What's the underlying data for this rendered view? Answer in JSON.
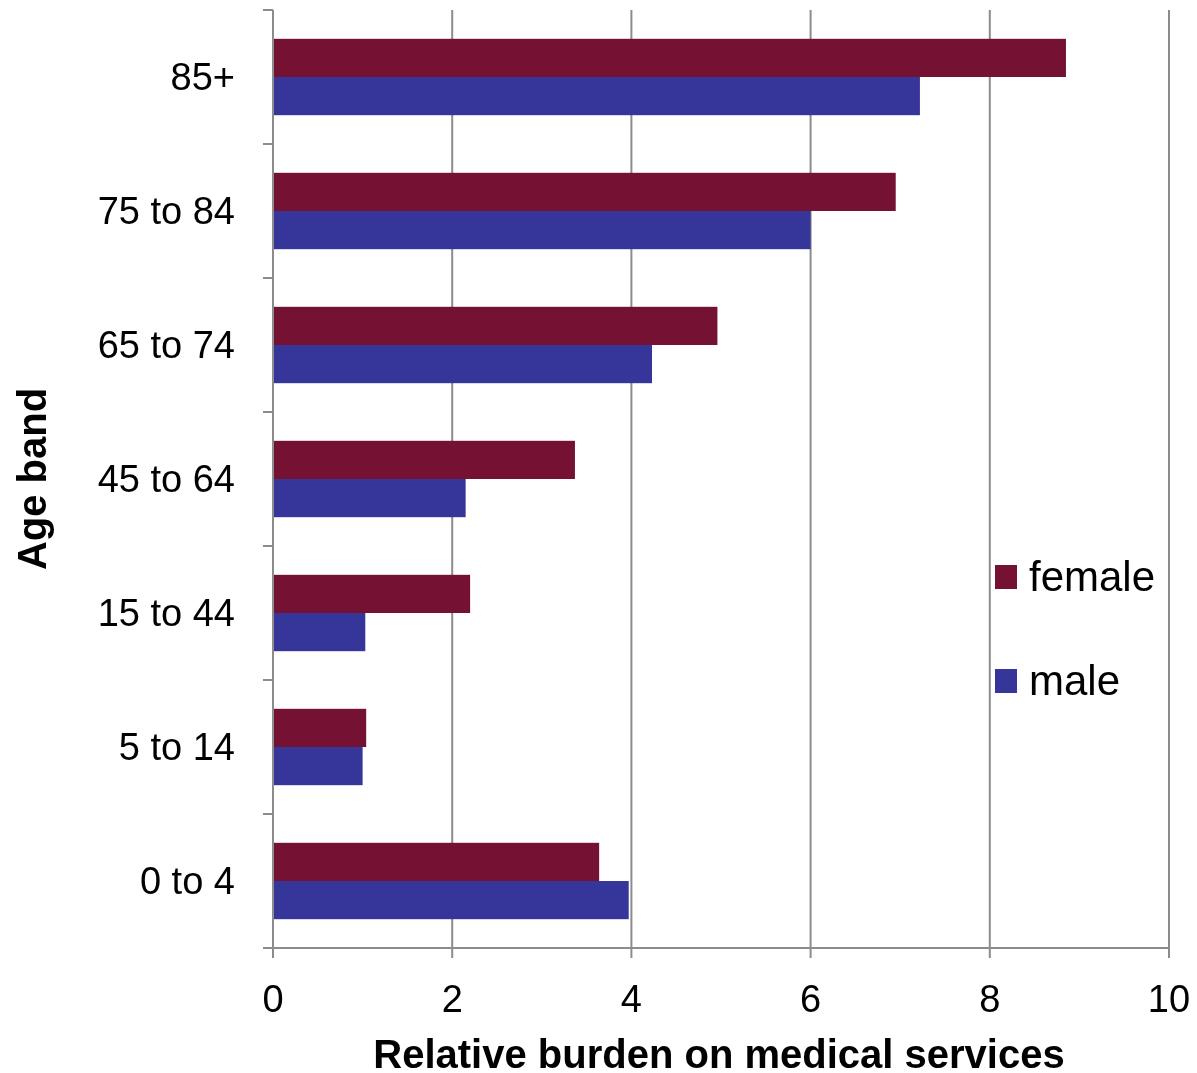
{
  "chart_data": {
    "type": "bar",
    "orientation": "horizontal",
    "xlabel": "Relative burden on medical services",
    "ylabel": "Age band",
    "categories": [
      "85+",
      "75 to 84",
      "65 to 74",
      "45 to 64",
      "15 to 44",
      "5 to 14",
      "0 to 4"
    ],
    "series": [
      {
        "name": "female",
        "color": "#751234",
        "values": [
          8.85,
          6.95,
          4.96,
          3.37,
          2.2,
          1.04,
          3.64
        ]
      },
      {
        "name": "male",
        "color": "#35359a",
        "values": [
          7.22,
          6.0,
          4.23,
          2.15,
          1.03,
          1.0,
          3.97
        ]
      }
    ],
    "xlim": [
      0,
      10
    ],
    "xticks": [
      0,
      2,
      4,
      6,
      8,
      10
    ],
    "grid": "x",
    "legend": "right"
  }
}
